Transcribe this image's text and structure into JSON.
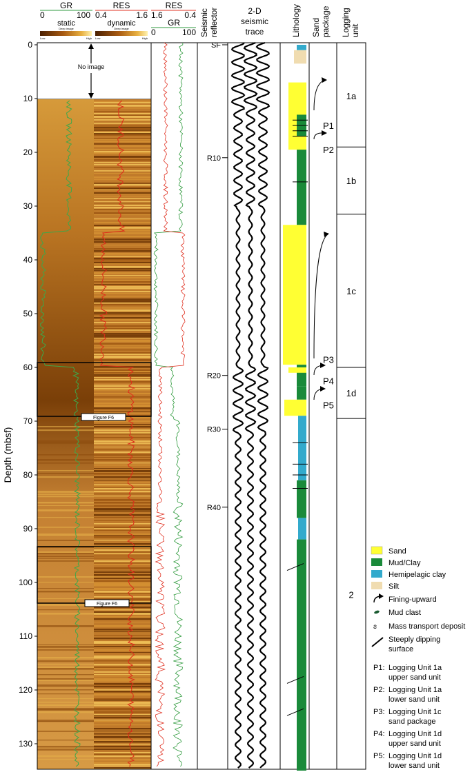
{
  "headers": {
    "gr_top": "GR",
    "gr_scale": [
      "0",
      "100"
    ],
    "res_top": "RES",
    "res_scale": [
      "0.4",
      "1.6"
    ],
    "res2_top": "RES",
    "res2_scale": [
      "1.6",
      "0.4"
    ],
    "gr2_top": "GR",
    "gr2_scale": [
      "0",
      "100"
    ],
    "static_label": "static",
    "static_sub": "Deep image",
    "dynamic_label": "dynamic",
    "dynamic_sub": "Deep image",
    "low_high": [
      "Low",
      "High",
      "Low",
      "High"
    ],
    "seismic_reflector": [
      "Seismic",
      "reflector"
    ],
    "seismic_trace": [
      "2-D",
      "seismic",
      "trace"
    ],
    "lithology": "Lithology",
    "sand_package": [
      "Sand",
      "package"
    ],
    "logging_unit": [
      "Logging",
      "unit"
    ]
  },
  "depth_axis": {
    "label": "Depth (mbsf)",
    "ticks": [
      "0",
      "10",
      "20",
      "30",
      "40",
      "50",
      "60",
      "70",
      "80",
      "90",
      "100",
      "110",
      "120",
      "130"
    ],
    "min": 0,
    "max": 135
  },
  "image_notes": {
    "no_image": "No image",
    "figure_box_1": "Figure F6",
    "figure_box_2": "Figure F6"
  },
  "reflectors": [
    {
      "label": "SF",
      "depth": 0
    },
    {
      "label": "R10",
      "depth": 21
    },
    {
      "label": "R20",
      "depth": 61.5
    },
    {
      "label": "R30",
      "depth": 71.5
    },
    {
      "label": "R40",
      "depth": 86
    }
  ],
  "sand_packages": [
    {
      "label": "P1",
      "depth": 15
    },
    {
      "label": "P2",
      "depth": 19.5
    },
    {
      "label": "P3",
      "depth": 58.5
    },
    {
      "label": "P4",
      "depth": 62.5
    },
    {
      "label": "P5",
      "depth": 67
    }
  ],
  "logging_units": [
    {
      "label": "1a",
      "top": 0,
      "bottom": 19
    },
    {
      "label": "1b",
      "top": 19,
      "bottom": 31.5
    },
    {
      "label": "1c",
      "top": 31.5,
      "bottom": 60
    },
    {
      "label": "1d",
      "top": 60,
      "bottom": 69.5
    },
    {
      "label": "2",
      "top": 69.5,
      "bottom": 135
    }
  ],
  "legend": {
    "sand": "Sand",
    "mud": "Mud/Clay",
    "hemipelagic": "Hemipelagic clay",
    "silt": "Silt",
    "fining": "Fining-upward",
    "mud_clast": "Mud clast",
    "mtd": "Mass transport deposit",
    "dipping": [
      "Steeply dipping",
      "surface"
    ],
    "definitions": [
      {
        "key": "P1:",
        "lines": [
          "Logging Unit 1a",
          "upper sand unit"
        ]
      },
      {
        "key": "P2:",
        "lines": [
          "Logging Unit 1a",
          "lower sand unit"
        ]
      },
      {
        "key": "P3:",
        "lines": [
          "Logging Unit 1c",
          "sand package"
        ]
      },
      {
        "key": "P4:",
        "lines": [
          "Logging Unit 1d",
          "upper sand unit"
        ]
      },
      {
        "key": "P5:",
        "lines": [
          "Logging Unit 1d",
          "lower sand unit"
        ]
      }
    ]
  },
  "colors": {
    "sand": "#ffff33",
    "mud": "#1a8a3a",
    "hemipelagic": "#33aacc",
    "silt": "#f0dcb0",
    "gr_curve": "#2e9a3c",
    "res_curve": "#e03020",
    "image_dark": "#6a3404",
    "image_light": "#f2c45a"
  }
}
